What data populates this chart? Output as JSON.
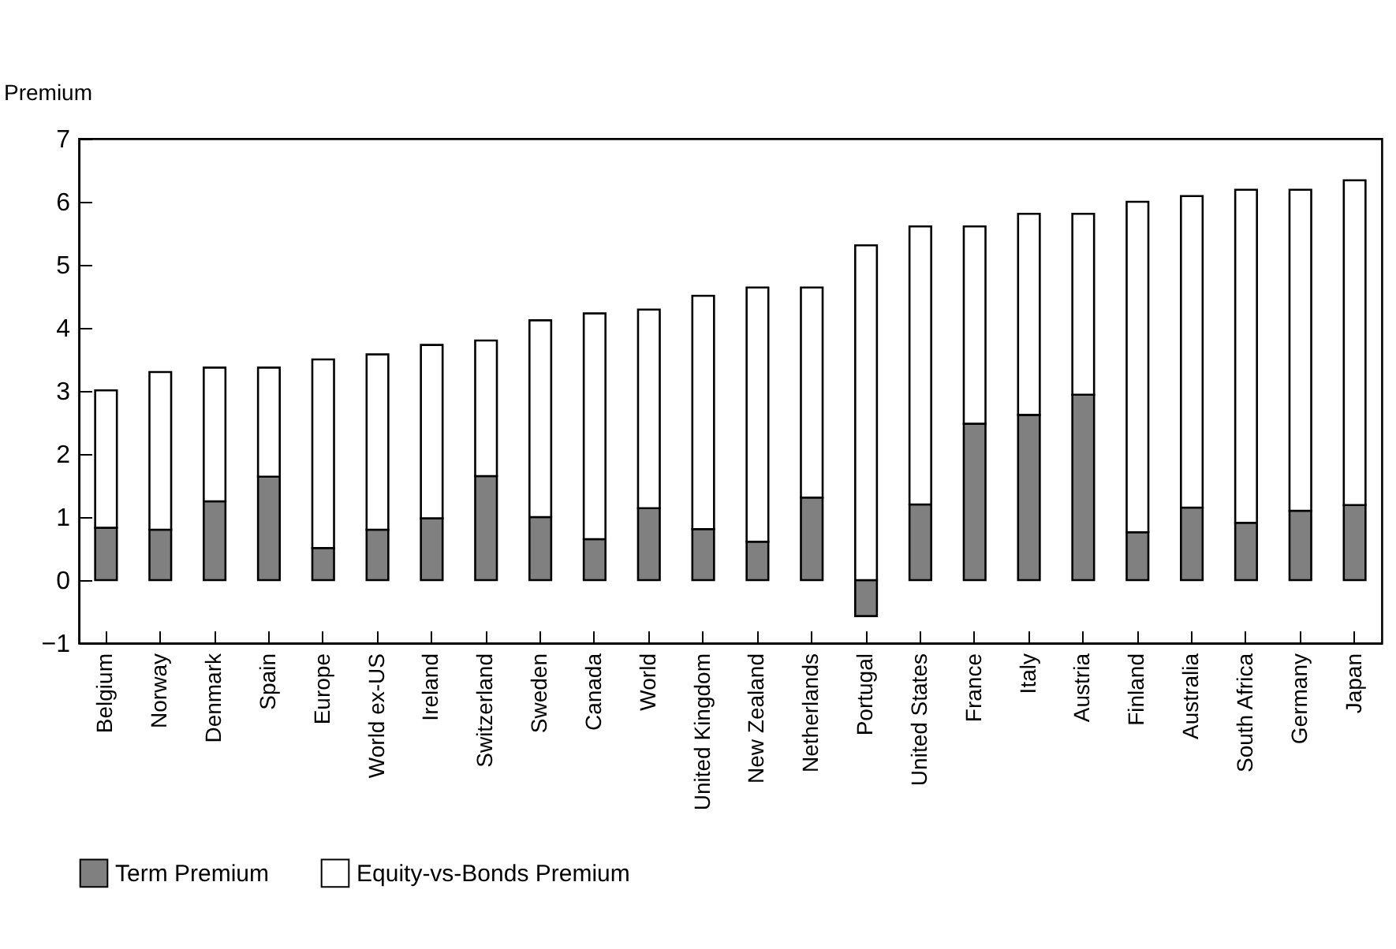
{
  "chart_data": {
    "type": "bar",
    "ylabel": "Premium",
    "stacked": true,
    "categories": [
      "Belgium",
      "Norway",
      "Denmark",
      "Spain",
      "Europe",
      "World ex-US",
      "Ireland",
      "Switzerland",
      "Sweden",
      "Canada",
      "World",
      "United Kingdom",
      "New Zealand",
      "Netherlands",
      "Portugal",
      "United States",
      "France",
      "Italy",
      "Austria",
      "Finland",
      "Australia",
      "South Africa",
      "Germany",
      "Japan"
    ],
    "series": [
      {
        "name": "Term Premium",
        "color": "#808080",
        "values": [
          0.83,
          0.8,
          1.25,
          1.64,
          0.51,
          0.8,
          0.98,
          1.65,
          1.0,
          0.65,
          1.14,
          0.81,
          0.61,
          1.31,
          -0.57,
          1.2,
          2.48,
          2.62,
          2.94,
          0.76,
          1.15,
          0.91,
          1.1,
          1.19
        ]
      },
      {
        "name": "Equity-vs-Bonds Premium",
        "color": "#ffffff",
        "values": [
          2.18,
          2.5,
          2.12,
          1.73,
          2.99,
          2.78,
          2.75,
          2.15,
          3.12,
          3.58,
          3.15,
          3.7,
          4.03,
          3.33,
          5.31,
          4.41,
          3.13,
          3.19,
          2.87,
          5.24,
          4.94,
          5.28,
          5.09,
          5.15
        ]
      }
    ],
    "ylim": [
      -1,
      7
    ],
    "yticks": [
      -1,
      0,
      1,
      2,
      3,
      4,
      5,
      6,
      7
    ],
    "grid": false,
    "legend": "bottom"
  }
}
